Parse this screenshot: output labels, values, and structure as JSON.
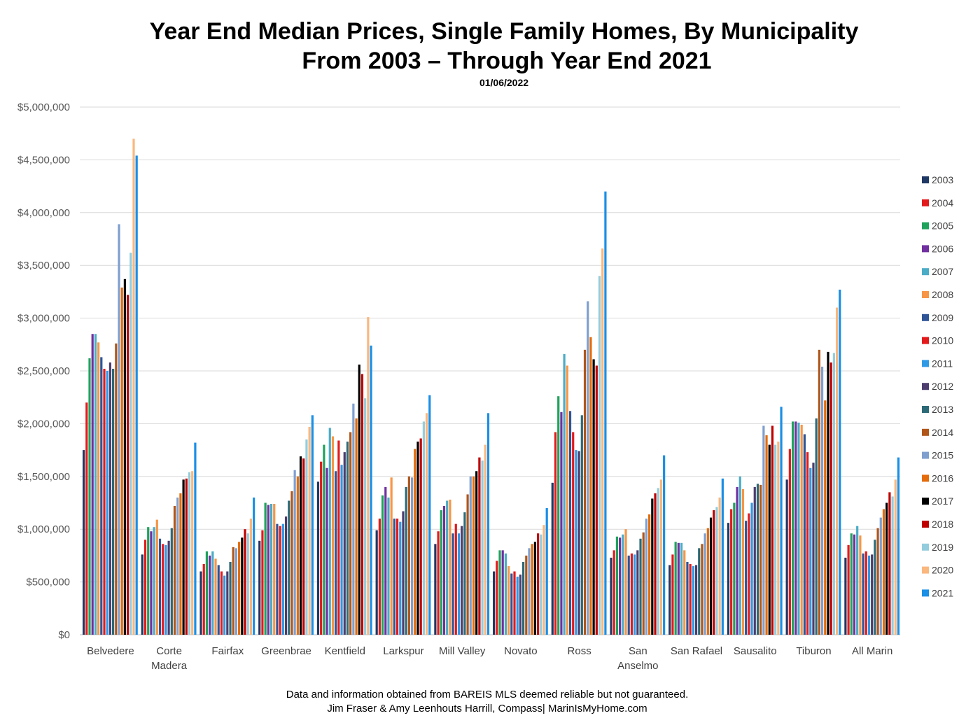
{
  "title": "Year End Median Prices, Single Family Homes, By Municipality",
  "subtitle": "From 2003 – Through Year End 2021",
  "date": "01/06/2022",
  "footer_line1": "Data and information obtained from BAREIS MLS deemed reliable but not guaranteed.",
  "footer_line2": "Jim Fraser & Amy Leenhouts Harrill, Compass| MarinIsMyHome.com",
  "chart_data": {
    "type": "bar",
    "title": "Year End Median Prices, Single Family Homes, By Municipality",
    "xlabel": "",
    "ylabel": "",
    "ylim": [
      0,
      5000000
    ],
    "yticks": [
      "$0",
      "$500,000",
      "$1,000,000",
      "$1,500,000",
      "$2,000,000",
      "$2,500,000",
      "$3,000,000",
      "$3,500,000",
      "$4,000,000",
      "$4,500,000",
      "$5,000,000"
    ],
    "grid": true,
    "legend_position": "right",
    "categories": [
      [
        "Belvedere"
      ],
      [
        "Corte",
        "Madera"
      ],
      [
        "Fairfax"
      ],
      [
        "Greenbrae"
      ],
      [
        "Kentfield"
      ],
      [
        "Larkspur"
      ],
      [
        "Mill Valley"
      ],
      [
        "Novato"
      ],
      [
        "Ross"
      ],
      [
        "San",
        "Anselmo"
      ],
      [
        "San Rafael"
      ],
      [
        "Sausalito"
      ],
      [
        "Tiburon"
      ],
      [
        "All Marin"
      ]
    ],
    "series": [
      {
        "name": "2003",
        "color": "#1f3864",
        "values": [
          1750000,
          760000,
          600000,
          890000,
          1450000,
          990000,
          860000,
          600000,
          1440000,
          730000,
          660000,
          1060000,
          1470000,
          730000
        ]
      },
      {
        "name": "2004",
        "color": "#e31a1c",
        "values": [
          2200000,
          900000,
          670000,
          990000,
          1640000,
          1100000,
          980000,
          700000,
          1920000,
          800000,
          760000,
          1190000,
          1760000,
          850000
        ]
      },
      {
        "name": "2005",
        "color": "#1fa35c",
        "values": [
          2620000,
          1020000,
          790000,
          1250000,
          1800000,
          1320000,
          1180000,
          800000,
          2260000,
          930000,
          880000,
          1250000,
          2020000,
          960000
        ]
      },
      {
        "name": "2006",
        "color": "#7030a0",
        "values": [
          2850000,
          980000,
          750000,
          1230000,
          1580000,
          1400000,
          1220000,
          800000,
          2110000,
          920000,
          870000,
          1400000,
          2020000,
          950000
        ]
      },
      {
        "name": "2007",
        "color": "#4bacc6",
        "values": [
          2850000,
          1020000,
          790000,
          1240000,
          1960000,
          1300000,
          1270000,
          770000,
          2660000,
          950000,
          870000,
          1500000,
          2010000,
          1030000
        ]
      },
      {
        "name": "2008",
        "color": "#f79646",
        "values": [
          2770000,
          1090000,
          720000,
          1240000,
          1880000,
          1490000,
          1280000,
          650000,
          2550000,
          1000000,
          800000,
          1380000,
          1990000,
          940000
        ]
      },
      {
        "name": "2009",
        "color": "#2f5597",
        "values": [
          2630000,
          910000,
          660000,
          1050000,
          1550000,
          1100000,
          960000,
          580000,
          2120000,
          750000,
          690000,
          1080000,
          1900000,
          770000
        ]
      },
      {
        "name": "2010",
        "color": "#e31a1c",
        "values": [
          2520000,
          860000,
          600000,
          1030000,
          1840000,
          1100000,
          1050000,
          600000,
          1920000,
          770000,
          670000,
          1150000,
          1730000,
          790000
        ]
      },
      {
        "name": "2011",
        "color": "#2e9ae6",
        "values": [
          2500000,
          850000,
          560000,
          1050000,
          1610000,
          1070000,
          960000,
          550000,
          1750000,
          760000,
          650000,
          1250000,
          1580000,
          750000
        ]
      },
      {
        "name": "2012",
        "color": "#4c3d6e",
        "values": [
          2580000,
          890000,
          600000,
          1120000,
          1730000,
          1170000,
          1030000,
          570000,
          1740000,
          800000,
          660000,
          1400000,
          1630000,
          760000
        ]
      },
      {
        "name": "2013",
        "color": "#2d6a77",
        "values": [
          2520000,
          1010000,
          690000,
          1270000,
          1830000,
          1400000,
          1160000,
          690000,
          2080000,
          910000,
          820000,
          1430000,
          2050000,
          900000
        ]
      },
      {
        "name": "2014",
        "color": "#b0561a",
        "values": [
          2760000,
          1220000,
          830000,
          1360000,
          1920000,
          1500000,
          1330000,
          750000,
          2700000,
          970000,
          860000,
          1420000,
          2700000,
          1010000
        ]
      },
      {
        "name": "2015",
        "color": "#7f9fcf",
        "values": [
          3890000,
          1300000,
          820000,
          1560000,
          2190000,
          1490000,
          1500000,
          820000,
          3160000,
          1100000,
          960000,
          1980000,
          2540000,
          1110000
        ]
      },
      {
        "name": "2016",
        "color": "#e46c0a",
        "values": [
          3290000,
          1340000,
          880000,
          1500000,
          2050000,
          1760000,
          1500000,
          860000,
          2820000,
          1140000,
          1010000,
          1890000,
          2220000,
          1190000
        ]
      },
      {
        "name": "2017",
        "color": "#000000",
        "values": [
          3370000,
          1470000,
          920000,
          1690000,
          2560000,
          1830000,
          1550000,
          880000,
          2610000,
          1290000,
          1110000,
          1800000,
          2680000,
          1250000
        ]
      },
      {
        "name": "2018",
        "color": "#c00000",
        "values": [
          3220000,
          1480000,
          1000000,
          1670000,
          2470000,
          1860000,
          1680000,
          960000,
          2550000,
          1340000,
          1180000,
          1980000,
          2580000,
          1350000
        ]
      },
      {
        "name": "2019",
        "color": "#93cddd",
        "values": [
          3620000,
          1540000,
          960000,
          1850000,
          2240000,
          2020000,
          1650000,
          950000,
          3400000,
          1390000,
          1210000,
          1800000,
          2670000,
          1310000
        ]
      },
      {
        "name": "2020",
        "color": "#fab77e",
        "values": [
          4700000,
          1550000,
          1100000,
          1970000,
          3010000,
          2100000,
          1800000,
          1040000,
          3660000,
          1470000,
          1300000,
          1830000,
          3100000,
          1470000
        ]
      },
      {
        "name": "2021",
        "color": "#1a8fe6",
        "values": [
          4540000,
          1820000,
          1300000,
          2080000,
          2740000,
          2270000,
          2100000,
          1200000,
          4200000,
          1700000,
          1480000,
          2160000,
          3270000,
          1680000
        ]
      }
    ]
  }
}
